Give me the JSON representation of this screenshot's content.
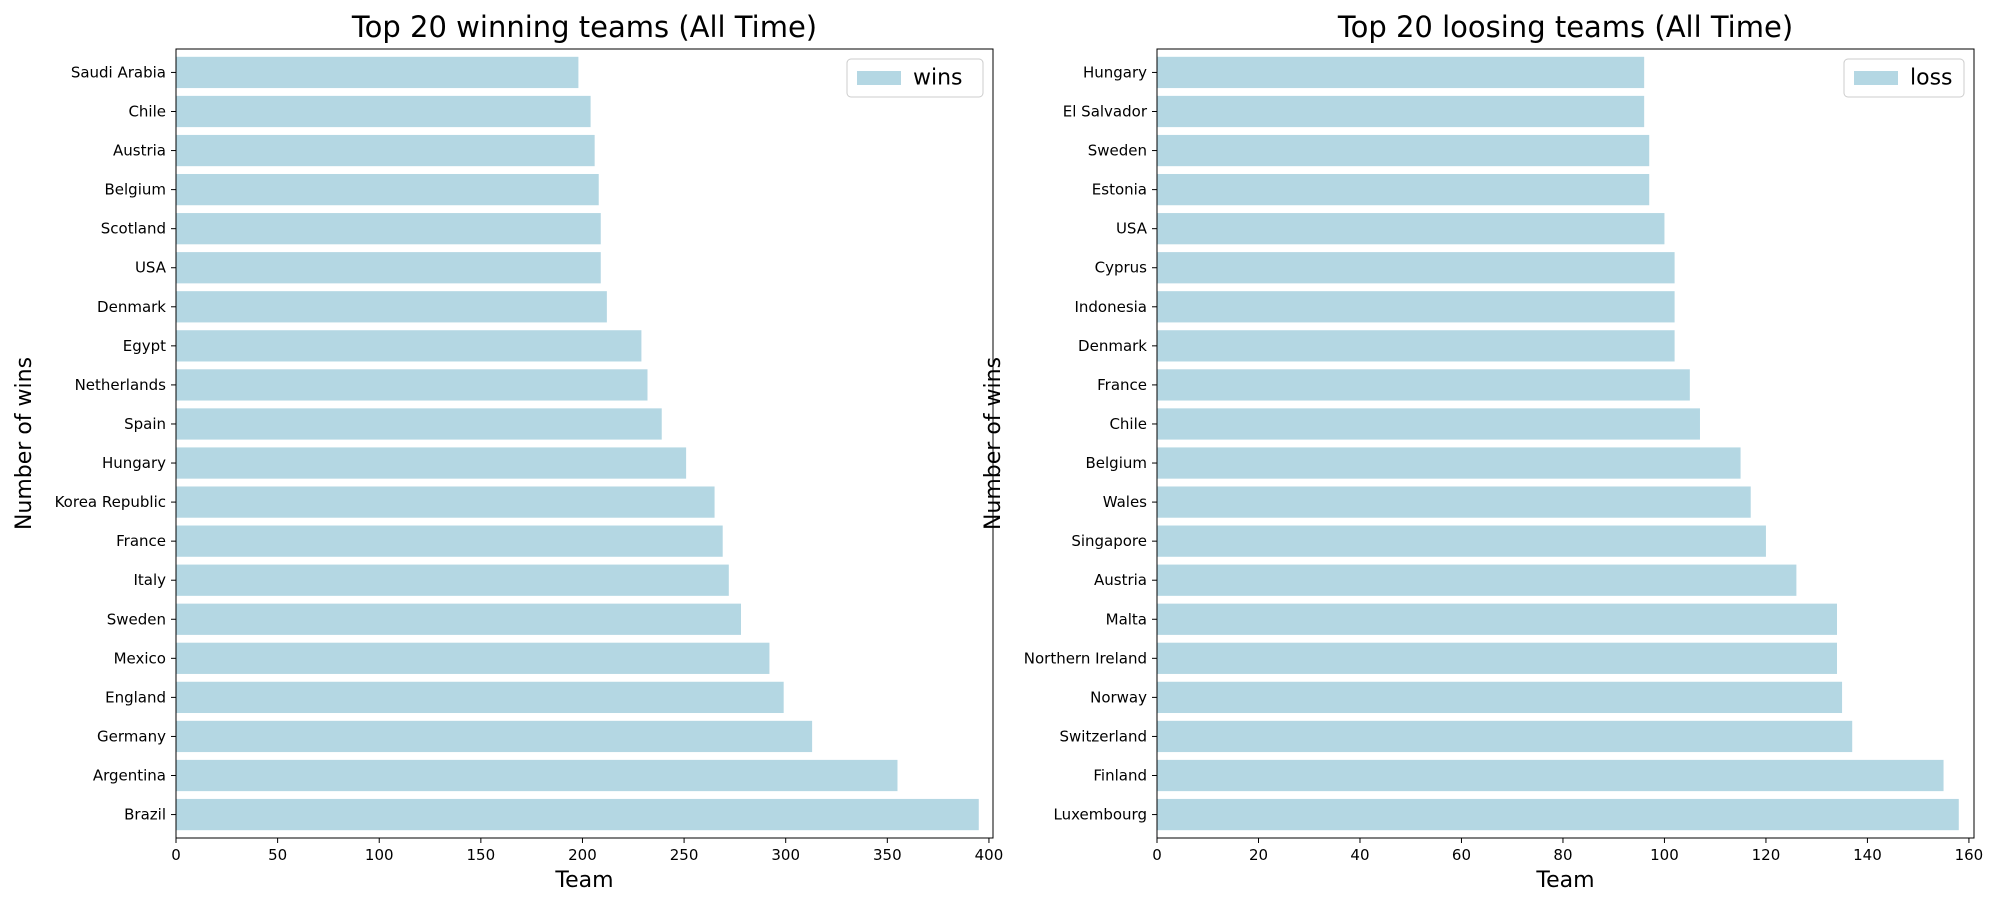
{
  "chart_data": [
    {
      "type": "bar",
      "orientation": "horizontal",
      "title": "Top 20 winning teams (All Time)",
      "xlabel": "Team",
      "ylabel": "Number of wins",
      "xlim": [
        0,
        402
      ],
      "xticks": [
        0,
        50,
        100,
        150,
        200,
        250,
        300,
        350,
        400
      ],
      "grid": false,
      "legend": "upper right",
      "color": "#b4d7e3",
      "categories": [
        "Saudi Arabia",
        "Chile",
        "Austria",
        "Belgium",
        "Scotland",
        "USA",
        "Denmark",
        "Egypt",
        "Netherlands",
        "Spain",
        "Hungary",
        "Korea Republic",
        "France",
        "Italy",
        "Sweden",
        "Mexico",
        "England",
        "Germany",
        "Argentina",
        "Brazil"
      ],
      "series": [
        {
          "name": "wins",
          "values": [
            198,
            204,
            206,
            208,
            209,
            209,
            212,
            229,
            232,
            239,
            251,
            265,
            269,
            272,
            278,
            292,
            299,
            313,
            355,
            395
          ]
        }
      ]
    },
    {
      "type": "bar",
      "orientation": "horizontal",
      "title": "Top 20 loosing teams (All Time)",
      "xlabel": "Team",
      "ylabel": "Number of wins",
      "xlim": [
        0,
        161
      ],
      "xticks": [
        0,
        20,
        40,
        60,
        80,
        100,
        120,
        140,
        160
      ],
      "grid": false,
      "legend": "upper right",
      "color": "#b4d7e3",
      "categories": [
        "Hungary",
        "El Salvador",
        "Sweden",
        "Estonia",
        "USA",
        "Cyprus",
        "Indonesia",
        "Denmark",
        "France",
        "Chile",
        "Belgium",
        "Wales",
        "Singapore",
        "Austria",
        "Malta",
        "Northern Ireland",
        "Norway",
        "Switzerland",
        "Finland",
        "Luxembourg"
      ],
      "series": [
        {
          "name": "loss",
          "values": [
            96,
            96,
            97,
            97,
            100,
            102,
            102,
            102,
            105,
            107,
            115,
            117,
            120,
            126,
            134,
            134,
            135,
            137,
            155,
            158
          ]
        }
      ]
    }
  ]
}
